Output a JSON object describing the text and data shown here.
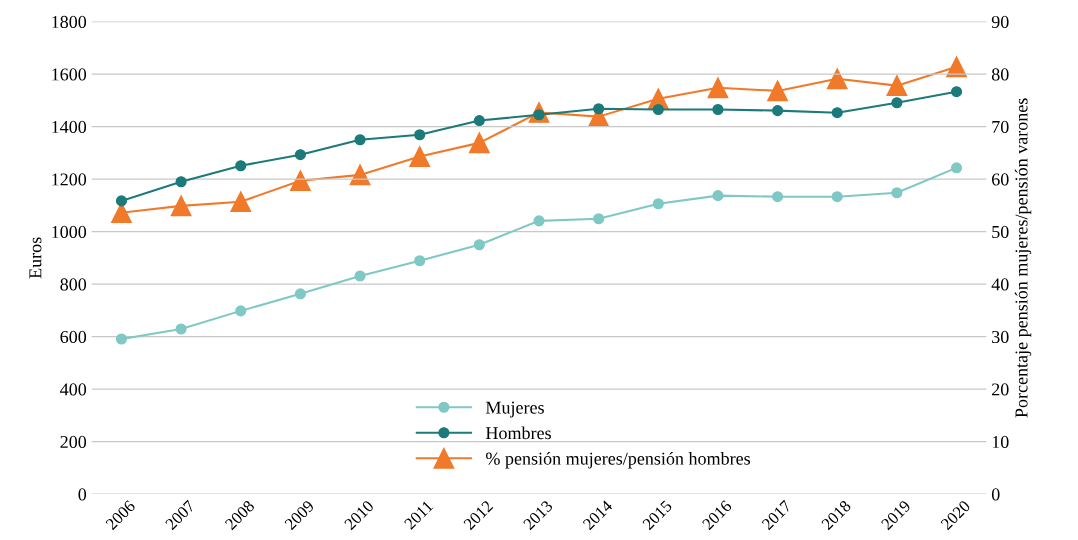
{
  "chart_data": {
    "type": "line",
    "ylabel": "Euros",
    "y2label": "Porcentaje pensión mujeres/pensión varones",
    "categories": [
      "2006",
      "2007",
      "2008",
      "2009",
      "2010",
      "2011",
      "2012",
      "2013",
      "2014",
      "2015",
      "2016",
      "2017",
      "2018",
      "2019",
      "2020"
    ],
    "series": [
      {
        "name": "Mujeres",
        "color": "#7fc8c4",
        "marker": "circle",
        "values": [
          591,
          629,
          698,
          763,
          831,
          889,
          950,
          1041,
          1049,
          1106,
          1137,
          1133,
          1133,
          1148,
          1243
        ]
      },
      {
        "name": "Hombres",
        "color": "#1d7a7a",
        "marker": "circle",
        "values": [
          1117,
          1190,
          1251,
          1293,
          1350,
          1369,
          1423,
          1445,
          1468,
          1465,
          1465,
          1461,
          1453,
          1491,
          1533
        ]
      },
      {
        "name": "% pensión mujeres/pensión hombres",
        "color": "#f07a2a",
        "marker": "triangle",
        "axis": "y2",
        "values": [
          53.6,
          54.9,
          55.7,
          59.7,
          60.8,
          64.3,
          66.9,
          72.7,
          71.9,
          75.3,
          77.4,
          76.8,
          79.1,
          77.8,
          81.4
        ]
      }
    ],
    "ylim": [
      0,
      1800
    ],
    "yticks": [
      0,
      200,
      400,
      600,
      800,
      1000,
      1200,
      1400,
      1600,
      1800
    ],
    "y2lim": [
      0,
      90
    ],
    "y2ticks": [
      0,
      10,
      20,
      30,
      40,
      50,
      60,
      70,
      80,
      90
    ],
    "grid": "y",
    "legend": "bottom"
  }
}
